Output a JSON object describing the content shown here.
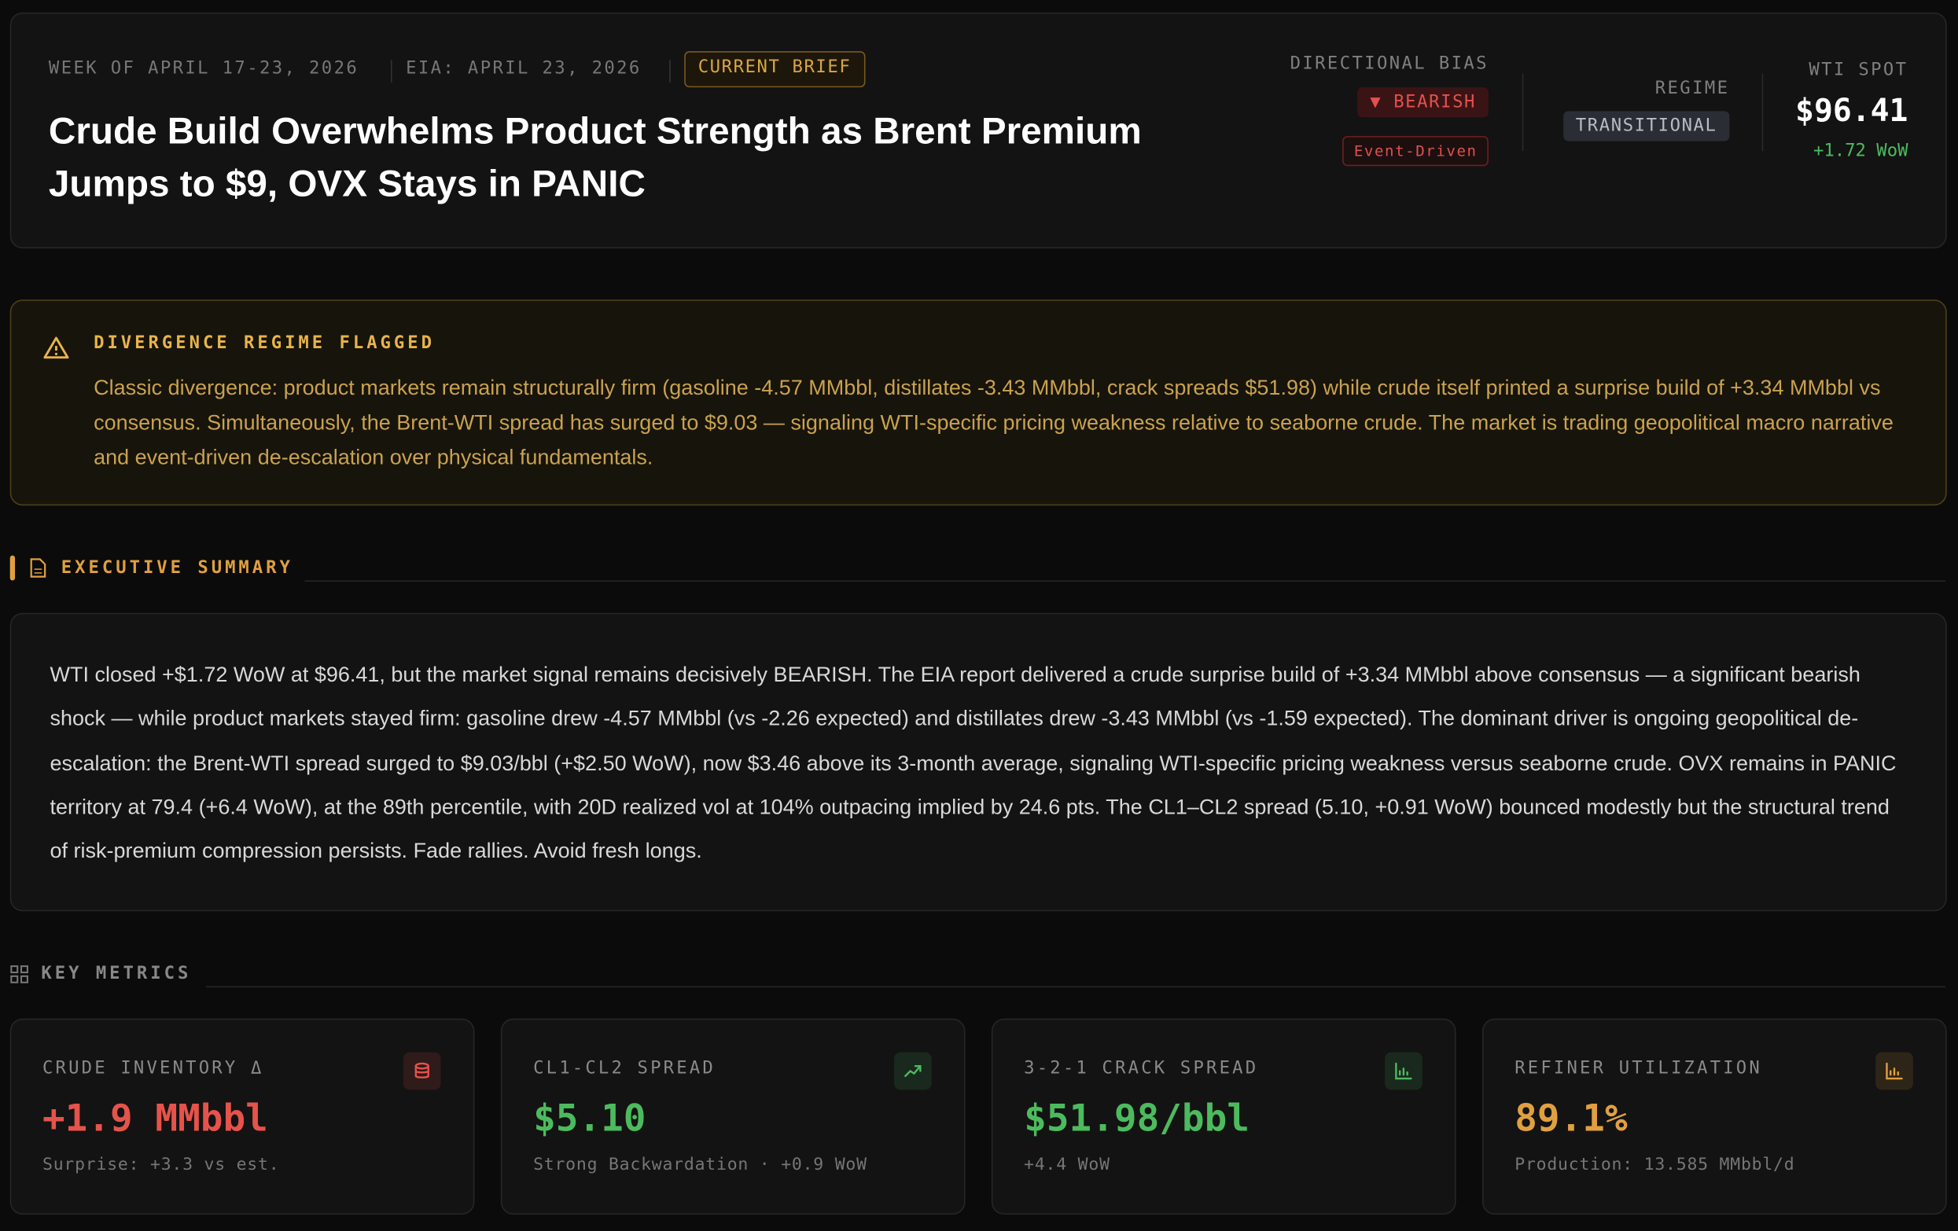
{
  "header": {
    "week": "WEEK OF APRIL 17-23, 2026",
    "eia": "EIA: APRIL 23, 2026",
    "badge": "CURRENT BRIEF",
    "title": "Crude Build Overwhelms Product Strength as Brent Premium Jumps to $9, OVX Stays in PANIC",
    "bias_label": "DIRECTIONAL BIAS",
    "bias": "▼ BEARISH",
    "bias_tag": "Event-Driven",
    "regime_label": "REGIME",
    "regime": "TRANSITIONAL",
    "spot_label": "WTI SPOT",
    "spot": "$96.41",
    "spot_change": "+1.72 WoW"
  },
  "alert": {
    "title": "DIVERGENCE REGIME FLAGGED",
    "text": "Classic divergence: product markets remain structurally firm (gasoline -4.57 MMbbl, distillates -3.43 MMbbl, crack spreads $51.98) while crude itself printed a surprise build of +3.34 MMbbl vs consensus. Simultaneously, the Brent-WTI spread has surged to $9.03 — signaling WTI-specific pricing weakness relative to seaborne crude. The market is trading geopolitical macro narrative and event-driven de-escalation over physical fundamentals."
  },
  "summary": {
    "heading": "EXECUTIVE SUMMARY",
    "text": "WTI closed +$1.72 WoW at $96.41, but the market signal remains decisively BEARISH. The EIA report delivered a crude surprise build of +3.34 MMbbl above consensus — a significant bearish shock — while product markets stayed firm: gasoline drew -4.57 MMbbl (vs -2.26 expected) and distillates drew -3.43 MMbbl (vs -1.59 expected). The dominant driver is ongoing geopolitical de-escalation: the Brent-WTI spread surged to $9.03/bbl (+$2.50 WoW), now $3.46 above its 3-month average, signaling WTI-specific pricing weakness versus seaborne crude. OVX remains in PANIC territory at 79.4 (+6.4 WoW), at the 89th percentile, with 20D realized vol at 104% outpacing implied by 24.6 pts. The CL1–CL2 spread (5.10, +0.91 WoW) bounced modestly but the structural trend of risk-premium compression persists. Fade rallies. Avoid fresh longs."
  },
  "metrics": {
    "heading": "KEY METRICS",
    "cards": [
      {
        "label": "CRUDE INVENTORY Δ",
        "value": "+1.9 MMbbl",
        "note": "Surprise: +3.3 vs est.",
        "color": "#e5534b"
      },
      {
        "label": "CL1-CL2 SPREAD",
        "value": "$5.10",
        "note": "Strong Backwardation · +0.9 WoW",
        "color": "#4cbb5e"
      },
      {
        "label": "3-2-1 CRACK SPREAD",
        "value": "$51.98/bbl",
        "note": "+4.4 WoW",
        "color": "#4cbb5e"
      },
      {
        "label": "REFINER UTILIZATION",
        "value": "89.1%",
        "note": "Production: 13.585 MMbbl/d",
        "color": "#e0a040"
      }
    ]
  }
}
